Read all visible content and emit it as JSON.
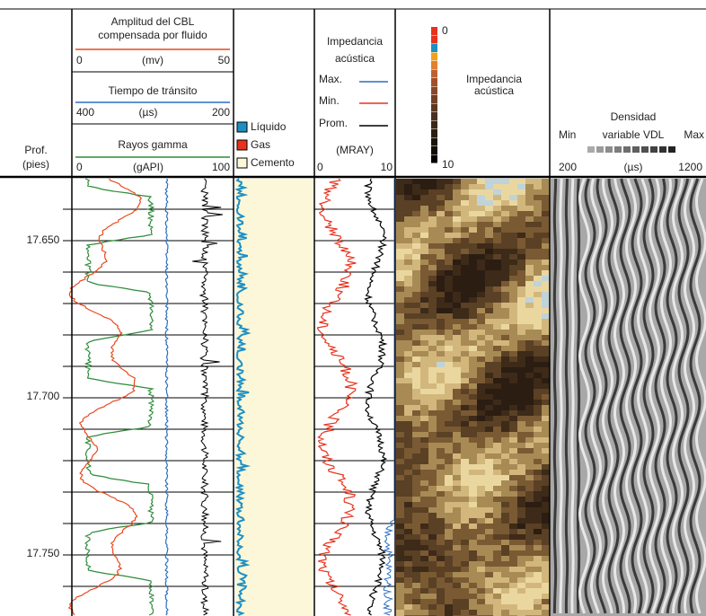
{
  "depth_column": {
    "title": "Prof.",
    "unit": "(pies)",
    "labels": [
      "17.650",
      "17.700",
      "17.750"
    ]
  },
  "track1": {
    "cbl": {
      "title_1": "Amplitud del CBL",
      "title_2": "compensada por fluido",
      "left": "0",
      "unit": "(mv)",
      "right": "50"
    },
    "transit": {
      "title": "Tiempo de tránsito",
      "left": "400",
      "unit": "(µs)",
      "right": "200"
    },
    "gamma": {
      "title": "Rayos gamma",
      "left": "0",
      "unit": "(gAPI)",
      "right": "100"
    }
  },
  "legend": [
    "Líquido",
    "Gas",
    "Cemento"
  ],
  "track3": {
    "title_1": "Impedancia",
    "title_2": "acústica",
    "max": "Max.",
    "min": "Min.",
    "avg": "Prom.",
    "unit": "(MRAY)",
    "left": "0",
    "right": "10"
  },
  "image_track": {
    "scale_top": "0",
    "scale_bottom": "10",
    "title_1": "Impedancia",
    "title_2": "acústica"
  },
  "vdl_track": {
    "title": "Densidad",
    "min": "Min",
    "middle": "variable VDL",
    "max": "Max",
    "left": "200",
    "unit": "(µs)",
    "right": "1200"
  }
}
